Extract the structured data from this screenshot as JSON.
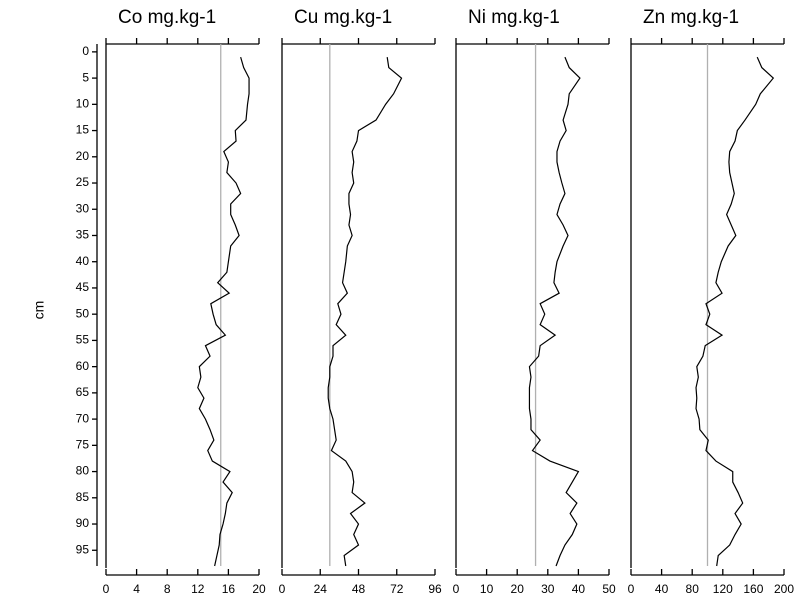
{
  "chart_data": [
    {
      "type": "line",
      "title": "Co mg.kg-1",
      "ylabel": "cm",
      "color": "#000000",
      "reference_line": 15,
      "reference_color": "#b0b0b0",
      "xlim": [
        0,
        20
      ],
      "xticks": [
        0,
        4,
        8,
        12,
        16,
        20
      ],
      "ylim": [
        -1.5,
        98
      ],
      "yticks": [
        0,
        5,
        10,
        15,
        20,
        25,
        30,
        35,
        40,
        45,
        50,
        55,
        60,
        65,
        70,
        75,
        80,
        85,
        90,
        95
      ],
      "y": [
        1,
        3,
        5,
        8,
        10,
        13,
        15,
        17,
        19,
        21,
        23,
        25,
        27,
        29,
        31,
        33,
        35,
        37,
        40,
        42,
        44,
        46,
        48,
        50,
        52,
        54,
        56,
        58,
        60,
        62,
        64,
        66,
        68,
        70,
        72,
        74,
        76,
        78,
        80,
        82,
        84,
        86,
        88,
        90,
        92,
        94,
        96,
        98
      ],
      "x": [
        17.6,
        18,
        18.7,
        18.7,
        18.5,
        18.3,
        16.9,
        17,
        15.4,
        16,
        15.8,
        17,
        17.6,
        16.3,
        16.3,
        16.9,
        17.4,
        16.3,
        16,
        15.8,
        14.6,
        16.1,
        13.7,
        14,
        14.4,
        15.6,
        13,
        13.6,
        12.2,
        12.4,
        12,
        12.8,
        12.2,
        13,
        13.6,
        14.1,
        13.3,
        13.9,
        16.2,
        15.3,
        16.5,
        15.8,
        15.6,
        15.3,
        14.9,
        14.8,
        14.5,
        14.2
      ]
    },
    {
      "type": "line",
      "title": "Cu mg.kg-1",
      "color": "#000000",
      "reference_line": 30,
      "reference_color": "#b0b0b0",
      "xlim": [
        0,
        96
      ],
      "xticks": [
        0,
        24,
        48,
        72,
        96
      ],
      "ylim": [
        -1.5,
        98
      ],
      "y": [
        1,
        3,
        5,
        8,
        10,
        13,
        15,
        17,
        19,
        21,
        23,
        25,
        27,
        29,
        31,
        33,
        35,
        37,
        40,
        42,
        44,
        46,
        48,
        50,
        52,
        54,
        56,
        58,
        60,
        62,
        64,
        66,
        68,
        70,
        72,
        74,
        76,
        78,
        80,
        82,
        84,
        86,
        88,
        90,
        92,
        94,
        96,
        98
      ],
      "x": [
        66,
        67,
        75,
        70,
        65,
        59,
        48,
        47,
        44,
        45,
        44,
        45,
        42,
        42,
        43,
        42,
        44,
        41,
        40,
        39,
        38,
        41,
        35,
        37,
        34,
        40,
        32,
        32,
        30,
        30,
        29,
        29,
        30,
        32,
        33,
        34,
        31,
        40,
        44,
        45,
        44,
        52,
        43,
        48,
        45,
        48,
        39,
        40
      ]
    },
    {
      "type": "line",
      "title": "Ni mg.kg-1",
      "color": "#000000",
      "reference_line": 26,
      "reference_color": "#b0b0b0",
      "xlim": [
        0,
        50
      ],
      "xticks": [
        0,
        10,
        20,
        30,
        40,
        50
      ],
      "ylim": [
        -1.5,
        98
      ],
      "y": [
        1,
        3,
        5,
        8,
        10,
        13,
        15,
        17,
        19,
        21,
        23,
        25,
        27,
        29,
        31,
        33,
        35,
        37,
        40,
        42,
        44,
        46,
        48,
        50,
        52,
        54,
        56,
        58,
        60,
        62,
        64,
        66,
        68,
        70,
        72,
        74,
        76,
        78,
        80,
        82,
        84,
        86,
        88,
        90,
        92,
        94,
        96,
        98
      ],
      "x": [
        35.6,
        37,
        40.5,
        37,
        36.6,
        35,
        36,
        34,
        33,
        33,
        33.7,
        34.6,
        35.6,
        34,
        33,
        35,
        36.6,
        35,
        33,
        32.4,
        32,
        33.7,
        27.5,
        29,
        27.5,
        32.4,
        27.5,
        27,
        24,
        24.5,
        24,
        24,
        24,
        24.5,
        24.5,
        27.5,
        25,
        30.7,
        40,
        38,
        36,
        39.5,
        37.3,
        39.5,
        38,
        35.6,
        34,
        32.7
      ]
    },
    {
      "type": "line",
      "title": "Zn mg.kg-1",
      "color": "#000000",
      "reference_line": 100,
      "reference_color": "#b0b0b0",
      "xlim": [
        0,
        200
      ],
      "xticks": [
        0,
        40,
        80,
        120,
        160,
        200
      ],
      "ylim": [
        -1.5,
        98
      ],
      "y": [
        1,
        3,
        5,
        8,
        10,
        13,
        15,
        17,
        19,
        21,
        23,
        25,
        27,
        29,
        31,
        33,
        35,
        37,
        40,
        42,
        44,
        46,
        48,
        50,
        52,
        54,
        56,
        58,
        60,
        62,
        64,
        66,
        68,
        70,
        72,
        74,
        76,
        78,
        80,
        82,
        84,
        86,
        88,
        90,
        92,
        94,
        96,
        98
      ],
      "x": [
        165,
        171,
        186,
        169,
        163,
        149,
        139,
        136,
        129,
        128,
        129,
        132,
        135,
        131,
        125,
        131,
        137,
        127,
        118,
        114,
        111,
        119,
        98,
        103,
        98,
        119,
        97,
        94,
        86,
        88,
        85,
        86,
        85,
        89,
        90,
        101,
        98,
        111,
        133,
        133,
        140,
        146,
        136,
        144,
        136,
        129,
        114,
        112
      ]
    }
  ]
}
